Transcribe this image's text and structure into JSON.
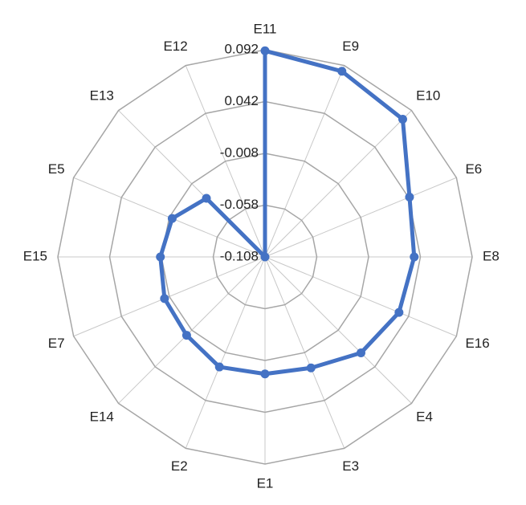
{
  "chart_data": {
    "type": "radar",
    "categories": [
      "E11",
      "E9",
      "E10",
      "E6",
      "E8",
      "E16",
      "E4",
      "E3",
      "E1",
      "E2",
      "E14",
      "E7",
      "E15",
      "E5",
      "E13",
      "E12"
    ],
    "values": [
      0.091,
      0.086,
      0.08,
      0.043,
      0.036,
      0.032,
      0.023,
      0.008,
      0.005,
      0.007,
      -0.001,
      -0.003,
      -0.007,
      -0.011,
      -0.028,
      -0.108
    ],
    "color": "#4472c4",
    "ylim": [
      -0.108,
      0.092
    ],
    "yticks": [
      -0.108,
      -0.058,
      -0.008,
      0.042,
      0.092
    ],
    "grid": true
  }
}
